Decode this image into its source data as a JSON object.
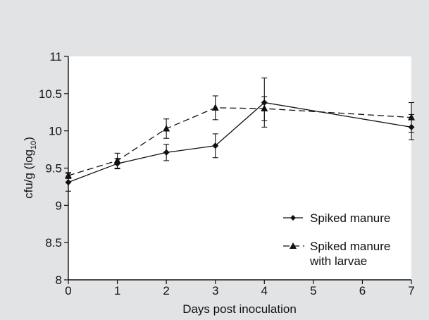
{
  "colors": {
    "background": "#e2e3e4",
    "plot_area": "#ffffff",
    "ink": "#111111"
  },
  "chart_data": {
    "type": "line",
    "title": "",
    "xlabel": "Days post inoculation",
    "ylabel_main": "cfu/g (log",
    "ylabel_sub": "10",
    "ylabel_end": ")",
    "xlim": [
      0,
      7
    ],
    "ylim": [
      8,
      11
    ],
    "x_ticks": [
      0,
      1,
      2,
      3,
      4,
      5,
      6,
      7
    ],
    "y_ticks": [
      8,
      8.5,
      9,
      9.5,
      10,
      10.5,
      11
    ],
    "x_tick_labels": [
      "0",
      "1",
      "2",
      "3",
      "4",
      "5",
      "6",
      "7"
    ],
    "y_tick_labels": [
      "8",
      "8.5",
      "9",
      "9.5",
      "10",
      "10.5",
      "11"
    ],
    "grid": false,
    "legend_position": "bottom-right",
    "series": [
      {
        "name": "Spiked manure",
        "legend_lines": [
          "Spiked manure"
        ],
        "marker": "diamond",
        "dash": "solid",
        "x": [
          0,
          1,
          2,
          3,
          4,
          7
        ],
        "y": [
          9.31,
          9.56,
          9.71,
          9.8,
          10.38,
          10.05
        ],
        "err": [
          0.12,
          0.07,
          0.11,
          0.16,
          0.33,
          0.17
        ]
      },
      {
        "name": "Spiked manure with larvae",
        "legend_lines": [
          "Spiked manure",
          "with larvae"
        ],
        "marker": "triangle",
        "dash": "dashed",
        "x": [
          0,
          1,
          2,
          3,
          4,
          7
        ],
        "y": [
          9.4,
          9.6,
          10.03,
          10.31,
          10.3,
          10.18
        ],
        "err": [
          0.04,
          0.1,
          0.13,
          0.16,
          0.16,
          0.2
        ]
      }
    ]
  }
}
